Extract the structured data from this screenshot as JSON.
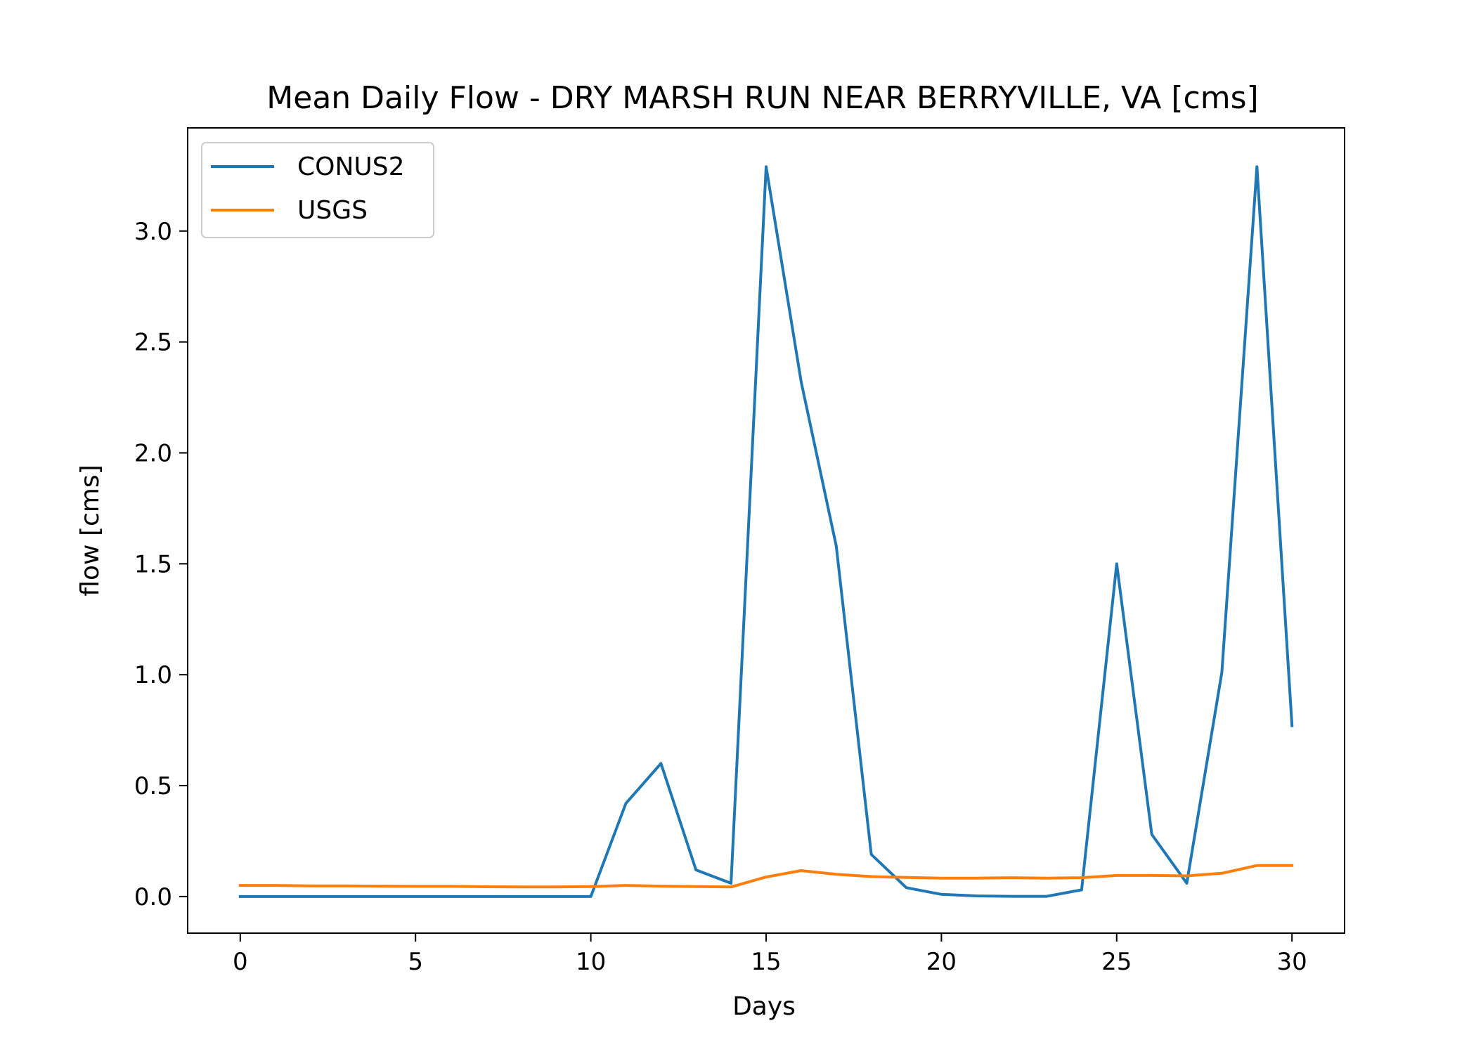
{
  "chart_data": {
    "type": "line",
    "title": "Mean Daily Flow - DRY MARSH RUN NEAR BERRYVILLE, VA [cms]",
    "xlabel": "Days",
    "ylabel": "flow [cms]",
    "xlim": [
      -1.5,
      31.5
    ],
    "ylim": [
      -0.165,
      3.465
    ],
    "xticks": [
      0,
      5,
      10,
      15,
      20,
      25,
      30
    ],
    "xtick_labels": [
      "0",
      "5",
      "10",
      "15",
      "20",
      "25",
      "30"
    ],
    "yticks": [
      0.0,
      0.5,
      1.0,
      1.5,
      2.0,
      2.5,
      3.0
    ],
    "ytick_labels": [
      "0.0",
      "0.5",
      "1.0",
      "1.5",
      "2.0",
      "2.5",
      "3.0"
    ],
    "grid": false,
    "legend_position": "top-left",
    "x": [
      0,
      1,
      2,
      3,
      4,
      5,
      6,
      7,
      8,
      9,
      10,
      11,
      12,
      13,
      14,
      15,
      16,
      17,
      18,
      19,
      20,
      21,
      22,
      23,
      24,
      25,
      26,
      27,
      28,
      29,
      30
    ],
    "series": [
      {
        "name": "CONUS2",
        "color": "#1f77b4",
        "values": [
          0.0,
          0.0,
          0.0,
          0.0,
          0.0,
          0.0,
          0.0,
          0.0,
          0.0,
          0.0,
          0.0,
          0.42,
          0.6,
          0.12,
          0.06,
          3.29,
          2.32,
          1.58,
          0.19,
          0.04,
          0.01,
          0.003,
          0.001,
          0.001,
          0.03,
          1.5,
          0.28,
          0.06,
          1.01,
          3.29,
          0.77
        ]
      },
      {
        "name": "USGS",
        "color": "#ff7f0e",
        "values": [
          0.05,
          0.05,
          0.048,
          0.048,
          0.047,
          0.046,
          0.046,
          0.044,
          0.043,
          0.043,
          0.045,
          0.05,
          0.047,
          0.045,
          0.043,
          0.088,
          0.117,
          0.1,
          0.09,
          0.086,
          0.083,
          0.083,
          0.085,
          0.083,
          0.085,
          0.095,
          0.095,
          0.093,
          0.105,
          0.14,
          0.14
        ]
      }
    ]
  }
}
